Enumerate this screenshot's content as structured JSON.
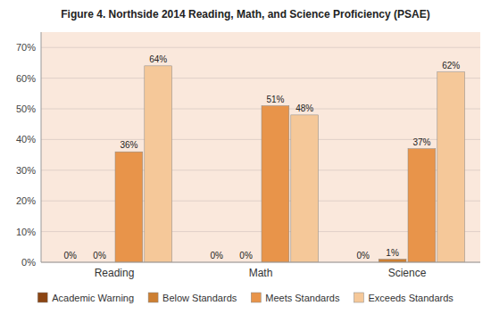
{
  "chart_data": {
    "type": "bar",
    "title": "Figure 4. Northside 2014 Reading, Math, and Science Proficiency (PSAE)",
    "categories": [
      "Reading",
      "Math",
      "Science"
    ],
    "series": [
      {
        "name": "Academic Warning",
        "color": "#8B4513",
        "values": [
          0,
          0,
          0
        ],
        "value_labels": [
          "0%",
          "0%",
          "0%"
        ]
      },
      {
        "name": "Below Standards",
        "color": "#CD7F32",
        "values": [
          0,
          0,
          1
        ],
        "value_labels": [
          "0%",
          "0%",
          "1%"
        ]
      },
      {
        "name": "Meets Standards",
        "color": "#E8944A",
        "values": [
          36,
          51,
          37
        ],
        "value_labels": [
          "36%",
          "51%",
          "37%"
        ]
      },
      {
        "name": "Exceeds Standards",
        "color": "#F5C899",
        "values": [
          64,
          48,
          62
        ],
        "value_labels": [
          "64%",
          "48%",
          "62%"
        ]
      }
    ],
    "ylim": [
      0,
      75
    ],
    "yticks": [
      {
        "value": 0,
        "label": "0%"
      },
      {
        "value": 10,
        "label": "10%"
      },
      {
        "value": 20,
        "label": "20%"
      },
      {
        "value": 30,
        "label": "30%"
      },
      {
        "value": 40,
        "label": "40%"
      },
      {
        "value": 50,
        "label": "50%"
      },
      {
        "value": 60,
        "label": "60%"
      },
      {
        "value": 70,
        "label": "70%"
      }
    ],
    "grid": true,
    "data_labels": true,
    "legend": "bottom"
  }
}
